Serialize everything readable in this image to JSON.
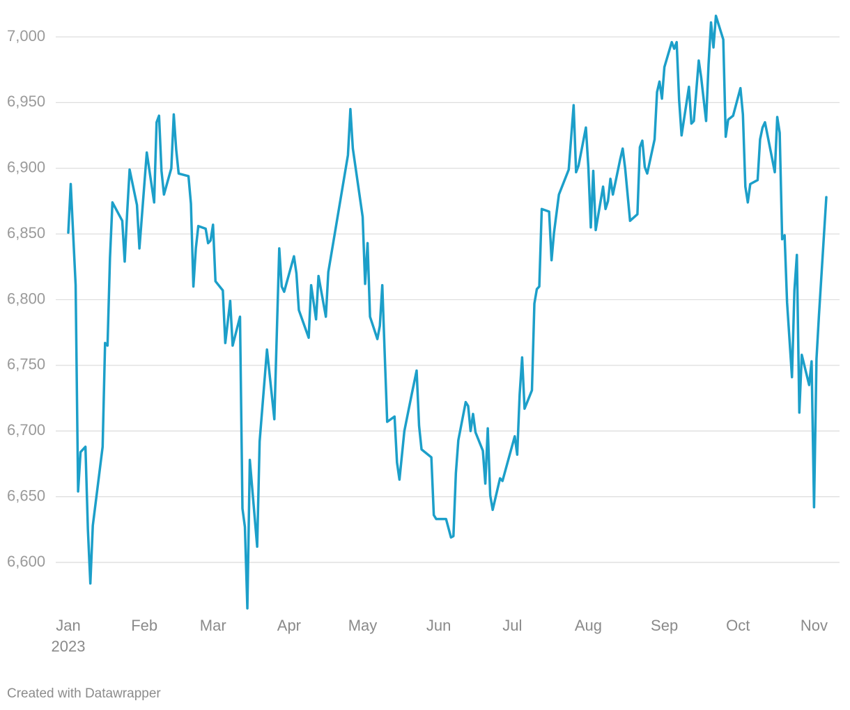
{
  "chart_data": {
    "type": "line",
    "x": [
      0,
      1,
      3,
      4,
      5,
      7,
      8,
      9,
      10,
      14,
      15,
      16,
      17,
      18,
      22,
      23,
      24,
      25,
      28,
      29,
      32,
      35,
      36,
      37,
      38,
      39,
      42,
      43,
      44,
      45,
      49,
      50,
      51,
      52,
      53,
      56,
      57,
      58,
      59,
      60,
      63,
      64,
      66,
      67,
      70,
      71,
      72,
      73,
      74,
      77,
      78,
      81,
      84,
      86,
      87,
      88,
      92,
      93,
      94,
      98,
      99,
      101,
      102,
      105,
      106,
      114,
      115,
      116,
      120,
      121,
      122,
      123,
      126,
      127,
      128,
      129,
      130,
      133,
      134,
      135,
      137,
      140,
      142,
      143,
      144,
      148,
      149,
      150,
      154,
      156,
      157,
      158,
      159,
      162,
      163,
      164,
      165,
      166,
      169,
      170,
      171,
      172,
      173,
      176,
      177,
      182,
      183,
      184,
      185,
      186,
      189,
      190,
      191,
      192,
      193,
      196,
      197,
      198,
      200,
      204,
      206,
      207,
      208,
      211,
      212,
      213,
      214,
      215,
      218,
      219,
      220,
      221,
      222,
      225,
      226,
      227,
      229,
      232,
      233,
      234,
      235,
      236,
      239,
      240,
      241,
      242,
      243,
      246,
      247,
      248,
      249,
      250,
      253,
      254,
      255,
      257,
      258,
      260,
      261,
      262,
      263,
      264,
      267,
      268,
      269,
      271,
      274,
      275,
      276,
      277,
      278,
      281,
      282,
      283,
      284,
      288,
      289,
      290,
      291,
      292,
      293,
      295,
      296,
      297,
      298,
      299,
      302,
      303,
      304,
      305,
      306,
      309
    ],
    "series": [
      {
        "color": "#1c9fc9",
        "values": [
          6851,
          6888,
          6811,
          6654,
          6684,
          6688,
          6625,
          6584,
          6628,
          6688,
          6767,
          6765,
          6832,
          6874,
          6860,
          6829,
          6866,
          6899,
          6872,
          6839,
          6912,
          6874,
          6935,
          6940,
          6898,
          6880,
          6900,
          6941,
          6914,
          6896,
          6894,
          6873,
          6810,
          6839,
          6856,
          6854,
          6843,
          6845,
          6857,
          6814,
          6807,
          6767,
          6799,
          6765,
          6787,
          6641,
          6627,
          6565,
          6678,
          6612,
          6692,
          6762,
          6709,
          6839,
          6810,
          6806,
          6833,
          6820,
          6792,
          6771,
          6811,
          6785,
          6818,
          6787,
          6821,
          6910,
          6945,
          6915,
          6863,
          6812,
          6843,
          6787,
          6770,
          6780,
          6811,
          6758,
          6707,
          6711,
          6676,
          6663,
          6700,
          6728,
          6746,
          6704,
          6686,
          6680,
          6636,
          6633,
          6633,
          6619,
          6620,
          6668,
          6693,
          6722,
          6719,
          6700,
          6713,
          6699,
          6685,
          6660,
          6702,
          6651,
          6640,
          6664,
          6662,
          6696,
          6682,
          6728,
          6756,
          6717,
          6731,
          6797,
          6808,
          6810,
          6869,
          6867,
          6830,
          6851,
          6880,
          6899,
          6948,
          6897,
          6902,
          6931,
          6901,
          6855,
          6898,
          6853,
          6886,
          6869,
          6875,
          6892,
          6880,
          6907,
          6915,
          6900,
          6860,
          6865,
          6916,
          6921,
          6901,
          6896,
          6922,
          6958,
          6966,
          6953,
          6977,
          6996,
          6991,
          6996,
          6952,
          6925,
          6962,
          6934,
          6936,
          6982,
          6969,
          6936,
          6979,
          7011,
          6992,
          7016,
          6998,
          6924,
          6937,
          6940,
          6961,
          6941,
          6886,
          6874,
          6888,
          6891,
          6922,
          6931,
          6935,
          6897,
          6939,
          6927,
          6846,
          6849,
          6798,
          6741,
          6807,
          6834,
          6714,
          6758,
          6735,
          6753,
          6642,
          6755,
          6788,
          6878
        ]
      }
    ],
    "xlim": [
      0,
      309
    ],
    "xticks": [
      {
        "value": 0,
        "label": "Jan"
      },
      {
        "value": 31,
        "label": "Feb"
      },
      {
        "value": 59,
        "label": "Mar"
      },
      {
        "value": 90,
        "label": "Apr"
      },
      {
        "value": 120,
        "label": "May"
      },
      {
        "value": 151,
        "label": "Jun"
      },
      {
        "value": 181,
        "label": "Jul"
      },
      {
        "value": 212,
        "label": "Aug"
      },
      {
        "value": 243,
        "label": "Sep"
      },
      {
        "value": 273,
        "label": "Oct"
      },
      {
        "value": 304,
        "label": "Nov"
      }
    ],
    "x_year_label": "2023",
    "ylim": [
      6565,
      7016
    ],
    "yticks": [
      {
        "value": 6600,
        "label": "6,600"
      },
      {
        "value": 6650,
        "label": "6,650"
      },
      {
        "value": 6700,
        "label": "6,700"
      },
      {
        "value": 6750,
        "label": "6,750"
      },
      {
        "value": 6800,
        "label": "6,800"
      },
      {
        "value": 6850,
        "label": "6,850"
      },
      {
        "value": 6900,
        "label": "6,900"
      },
      {
        "value": 6950,
        "label": "6,950"
      },
      {
        "value": 7000,
        "label": "7,000"
      }
    ],
    "grid": true,
    "credit": "Created with Datawrapper"
  }
}
